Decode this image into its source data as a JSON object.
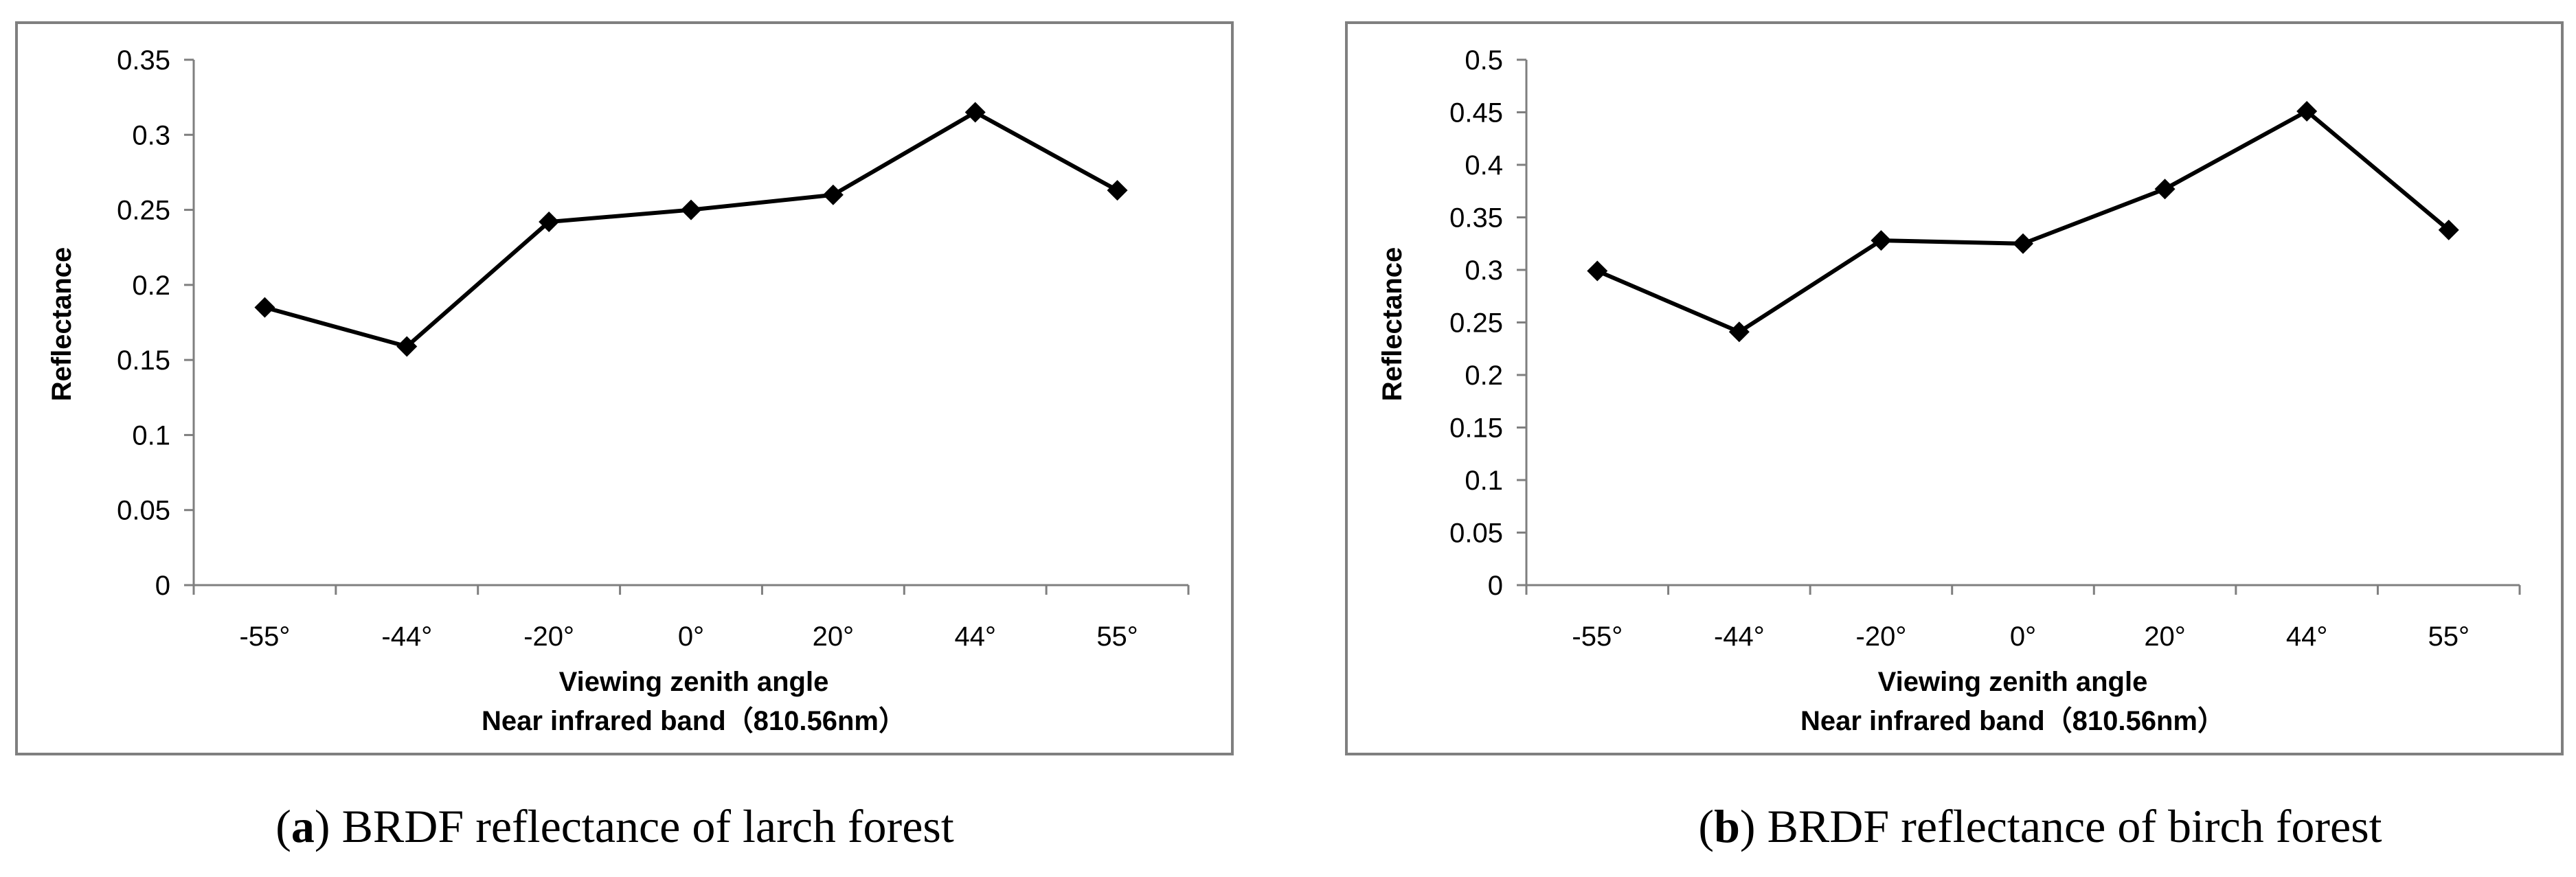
{
  "chart_data": [
    {
      "type": "line",
      "categories": [
        "-55°",
        "-44°",
        "-20°",
        "0°",
        "20°",
        "44°",
        "55°"
      ],
      "series": [
        {
          "values": [
            0.185,
            0.159,
            0.242,
            0.25,
            0.26,
            0.315,
            0.263
          ],
          "color": "#000000",
          "marker": "diamond"
        }
      ],
      "xlabel": "Viewing zenith angle",
      "xlabel2": "Near infrared band（810.56nm）",
      "ylabel": "Reflectance",
      "ylim": [
        0,
        0.35
      ],
      "yticks": [
        0,
        0.05,
        0.1,
        0.15,
        0.2,
        0.25,
        0.3,
        0.35
      ],
      "ytick_labels": [
        "0",
        "0.05",
        "0.1",
        "0.15",
        "0.2",
        "0.25",
        "0.3",
        "0.35"
      ],
      "grid": false,
      "caption_letter": "a",
      "caption_text": "BRDF reflectance of larch forest"
    },
    {
      "type": "line",
      "categories": [
        "-55°",
        "-44°",
        "-20°",
        "0°",
        "20°",
        "44°",
        "55°"
      ],
      "series": [
        {
          "values": [
            0.299,
            0.241,
            0.328,
            0.325,
            0.377,
            0.451,
            0.338
          ],
          "color": "#000000",
          "marker": "diamond"
        }
      ],
      "xlabel": "Viewing zenith angle",
      "xlabel2": "Near infrared band（810.56nm）",
      "ylabel": "Reflectance",
      "ylim": [
        0,
        0.5
      ],
      "yticks": [
        0,
        0.05,
        0.1,
        0.15,
        0.2,
        0.25,
        0.3,
        0.35,
        0.4,
        0.45,
        0.5
      ],
      "ytick_labels": [
        "0",
        "0.05",
        "0.1",
        "0.15",
        "0.2",
        "0.25",
        "0.3",
        "0.35",
        "0.4",
        "0.45",
        "0.5"
      ],
      "grid": false,
      "caption_letter": "b",
      "caption_text": "BRDF reflectance of birch forest"
    }
  ]
}
